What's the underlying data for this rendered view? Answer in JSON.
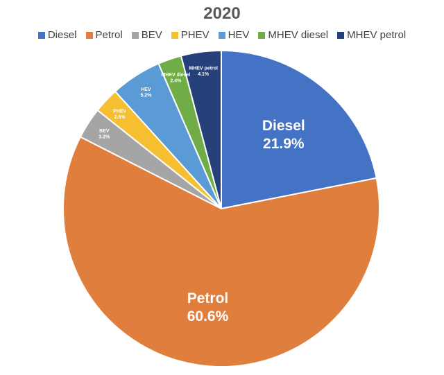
{
  "chart_data": {
    "type": "pie",
    "title": "2020",
    "legend_position": "top",
    "categories": [
      "Diesel",
      "Petrol",
      "BEV",
      "PHEV",
      "HEV",
      "MHEV diesel",
      "MHEV petrol"
    ],
    "values": [
      21.9,
      60.6,
      3.2,
      2.6,
      5.2,
      2.4,
      4.1
    ],
    "value_labels": [
      "21.9%",
      "60.6%",
      "3.2%",
      "2.6%",
      "5.2%",
      "2.4%",
      "4.1%"
    ],
    "colors": [
      "#4472c4",
      "#e07f3d",
      "#a5a5a5",
      "#f6be31",
      "#5b9bd5",
      "#70ad47",
      "#26407a"
    ]
  }
}
